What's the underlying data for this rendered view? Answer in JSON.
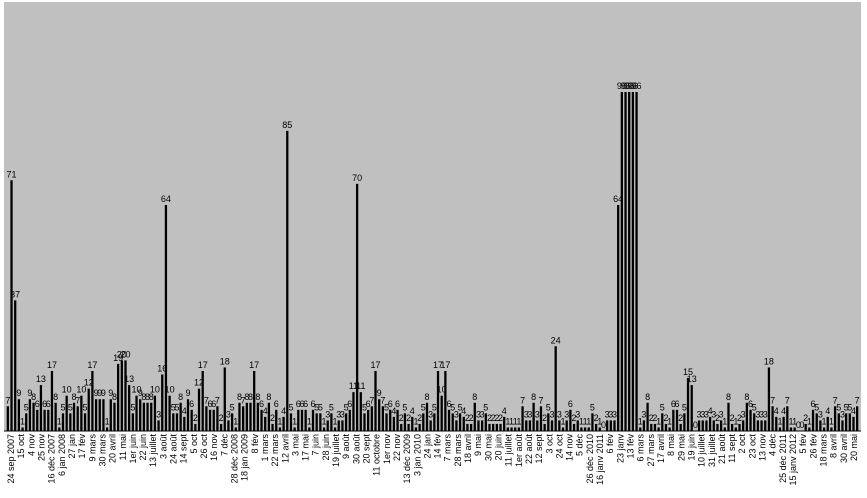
{
  "chart_data": {
    "type": "bar",
    "title": "",
    "xlabel": "",
    "ylabel": "",
    "ylim": [
      0,
      98
    ],
    "grid": false,
    "legend": "none",
    "colors": {
      "plot_bg": "#c0c0c0",
      "bar": "#000000",
      "outer_bg": "#ffffff"
    },
    "values": [
      7,
      71,
      37,
      9,
      1,
      5,
      9,
      8,
      6,
      13,
      6,
      6,
      17,
      8,
      1,
      5,
      10,
      5,
      8,
      7,
      10,
      5,
      12,
      17,
      9,
      9,
      9,
      1,
      9,
      8,
      19,
      20,
      20,
      13,
      5,
      10,
      9,
      8,
      8,
      8,
      10,
      3,
      16,
      64,
      10,
      5,
      5,
      8,
      4,
      9,
      6,
      2,
      12,
      17,
      7,
      6,
      6,
      7,
      2,
      18,
      3,
      5,
      1,
      8,
      7,
      8,
      8,
      17,
      8,
      6,
      4,
      8,
      2,
      6,
      1,
      4,
      85,
      5,
      1,
      6,
      6,
      6,
      1,
      6,
      5,
      5,
      1,
      3,
      5,
      1,
      3,
      3,
      5,
      6,
      11,
      70,
      11,
      5,
      6,
      7,
      17,
      9,
      7,
      5,
      6,
      4,
      6,
      2,
      5,
      2,
      4,
      1,
      2,
      5,
      8,
      3,
      5,
      17,
      10,
      17,
      6,
      5,
      3,
      5,
      4,
      2,
      2,
      8,
      3,
      3,
      5,
      2,
      2,
      2,
      2,
      4,
      1,
      1,
      1,
      1,
      7,
      3,
      3,
      8,
      3,
      7,
      2,
      5,
      3,
      24,
      3,
      1,
      3,
      6,
      2,
      3,
      1,
      1,
      1,
      5,
      2,
      1,
      0,
      3,
      3,
      3,
      64,
      96,
      96,
      96,
      96,
      96,
      1,
      3,
      8,
      2,
      2,
      1,
      5,
      2,
      1,
      6,
      6,
      2,
      5,
      15,
      13,
      0,
      3,
      3,
      3,
      4,
      3,
      2,
      3,
      1,
      8,
      2,
      1,
      2,
      3,
      8,
      6,
      5,
      3,
      3,
      3,
      18,
      7,
      4,
      1,
      4,
      7,
      1,
      1,
      0,
      0,
      2,
      1,
      6,
      5,
      3,
      1,
      4,
      1,
      7,
      5,
      3,
      5,
      5,
      4,
      7
    ],
    "tick_labels": [
      "24 sep 2007",
      "15 oct",
      "4 nov",
      "25 nov",
      "16 déc 2007",
      "6 jan 2008",
      "27 jan",
      "17 fév",
      "9 mars",
      "30 mars",
      "20 avril",
      "11 mai",
      "1er juin",
      "22 juin",
      "13 juillet",
      "3 août",
      "24 août",
      "14 sept",
      "5 oct",
      "26 oct",
      "16 nov",
      "7 déc",
      "28 déc 2008",
      "18 jan 2009",
      "8 fév",
      "1 mars",
      "22 mars",
      "12 avril",
      "3 mai",
      "17 mai",
      "7 juin",
      "28 juin",
      "19 juillet",
      "9 août",
      "30 août",
      "20 sept",
      "11 octobre",
      "1er nov",
      "22 nov",
      "13 déc 2009",
      "3 jan 2010",
      "24 jan",
      "14 fév",
      "7 mars",
      "28 mars",
      "18 avril",
      "9 mai",
      "30 mai",
      "20 juin",
      "11 juillet",
      "1er août",
      "22 août",
      "12 sept",
      "3 oct",
      "24 oct",
      "14 nov",
      "5 déc",
      "26 déc 2010",
      "16 janv 2011",
      "6 fév",
      "23 janv",
      "13 fév",
      "6 mars",
      "27 mars",
      "17 avril",
      "8 mai",
      "29 mai",
      "19 juin",
      "10 juillet",
      "31 juillet",
      "21 août",
      "11 sept",
      "2 oct",
      "23 oct",
      "13 nov",
      "4 déc",
      "25 déc 2011",
      "15 janv 2012",
      "5 fév",
      "26 fév",
      "18 mars",
      "8 avril",
      "30 avril",
      "20 mai"
    ]
  }
}
